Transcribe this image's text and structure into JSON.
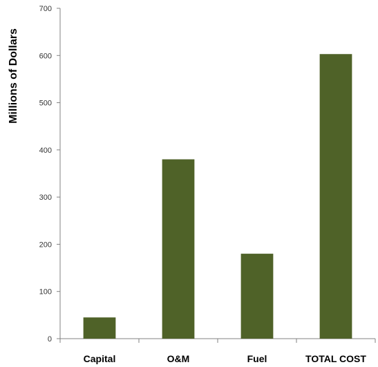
{
  "chart_data": {
    "type": "bar",
    "title": "",
    "xlabel": "",
    "ylabel": "Millions of Dollars",
    "categories": [
      "Capital",
      "O&M",
      "Fuel",
      "TOTAL COST"
    ],
    "values": [
      45,
      380,
      180,
      603
    ],
    "ylim": [
      0,
      700
    ],
    "yticks": [
      "0",
      "100",
      "200",
      "300",
      "400",
      "500",
      "600",
      "700"
    ],
    "grid": false,
    "legend": "none",
    "bar_color": "#4f6228",
    "axis_color": "#808080"
  }
}
